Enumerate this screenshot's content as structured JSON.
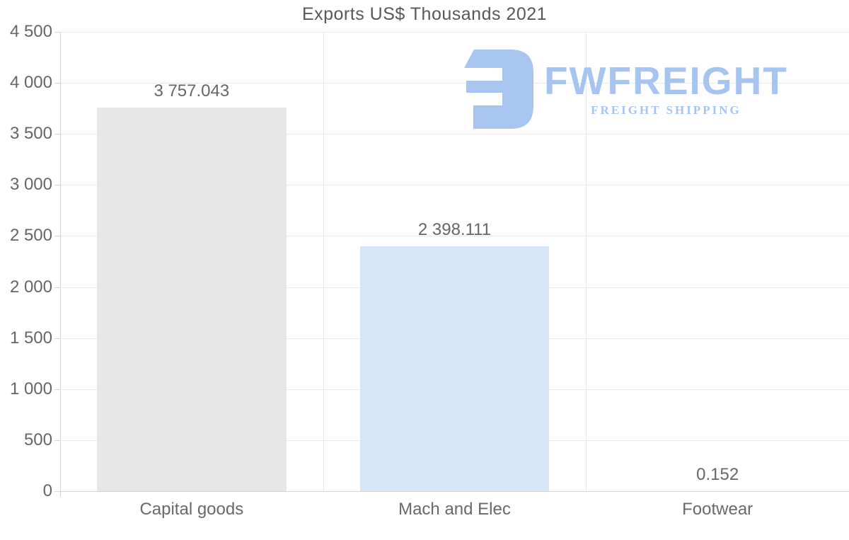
{
  "logo": {
    "name": "FWFREIGHT",
    "tagline": "FREIGHT SHIPPING",
    "color": "#a6c4f0"
  },
  "colors": {
    "grid": "#e9e9e9",
    "axis": "#d4d4d4",
    "text": "#666666",
    "title_text": "#58585a"
  },
  "chart_data": {
    "type": "bar",
    "title": "Exports US$ Thousands 2021",
    "categories": [
      "Capital goods",
      "Mach and Elec",
      "Footwear"
    ],
    "values": [
      3757.043,
      2398.111,
      0.152
    ],
    "value_labels": [
      "3 757.043",
      "2 398.111",
      "0.152"
    ],
    "bar_colors": [
      "#e7e7e7",
      "#d6e6f8",
      "#d6e6f8"
    ],
    "xlabel": "",
    "ylabel": "",
    "ylim": [
      0,
      4500
    ],
    "yticks": [
      0,
      500,
      1000,
      1500,
      2000,
      2500,
      3000,
      3500,
      4000,
      4500
    ],
    "ytick_labels": [
      "0",
      "500",
      "1 000",
      "1 500",
      "2 000",
      "2 500",
      "3 000",
      "3 500",
      "4 000",
      "4 500"
    ],
    "grid": true,
    "legend": "none"
  }
}
